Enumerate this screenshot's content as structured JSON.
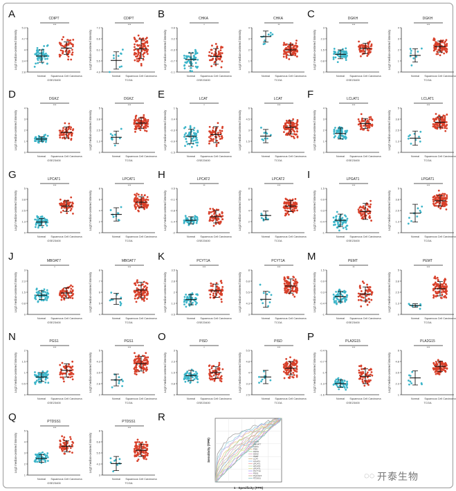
{
  "colors": {
    "normal": "#3cb5c9",
    "tumor": "#d8402a",
    "axis": "#333333"
  },
  "ylabel": "Log2 median-centered intensity",
  "categories": [
    "Normal",
    "Squamous Cell Carcinoma"
  ],
  "watermark": "开泰生物",
  "chart_data": [
    {
      "label": "A",
      "type": "scatter",
      "gene": "CDIPT",
      "plots": [
        {
          "dataset": "GSE23400",
          "sig": "***",
          "ylim": [
            2.8,
            5.3
          ],
          "groups": [
            {
              "mean": 3.7,
              "sd": 0.35,
              "n": 55
            },
            {
              "mean": 4.15,
              "sd": 0.35,
              "n": 55
            }
          ]
        },
        {
          "dataset": "TCGA",
          "sig": "***",
          "ylim": [
            4.9,
            7.2
          ],
          "groups": [
            {
              "mean": 5.5,
              "sd": 0.45,
              "n": 9
            },
            {
              "mean": 6.1,
              "sd": 0.5,
              "n": 90
            }
          ]
        }
      ]
    },
    {
      "label": "B",
      "type": "scatter",
      "gene": "CHKA",
      "plots": [
        {
          "dataset": "GSE23400",
          "sig": "*",
          "ylim": [
            -1.1,
            0.6
          ],
          "groups": [
            {
              "mean": -0.62,
              "sd": 0.25,
              "n": 55
            },
            {
              "mean": -0.5,
              "sd": 0.3,
              "n": 55
            }
          ]
        },
        {
          "dataset": "TCGA",
          "sig": "**",
          "ylim": [
            0,
            4
          ],
          "groups": [
            {
              "mean": 3.2,
              "sd": 0.5,
              "n": 9
            },
            {
              "mean": 2.0,
              "sd": 0.5,
              "n": 90
            }
          ]
        }
      ]
    },
    {
      "label": "C",
      "type": "scatter",
      "gene": "DGKH",
      "plots": [
        {
          "dataset": "GSE23400",
          "sig": "***",
          "ylim": [
            0,
            3
          ],
          "groups": [
            {
              "mean": 1.2,
              "sd": 0.3,
              "n": 55
            },
            {
              "mean": 1.6,
              "sd": 0.35,
              "n": 55
            }
          ]
        },
        {
          "dataset": "TCGA",
          "sig": "***",
          "ylim": [
            0,
            4
          ],
          "groups": [
            {
              "mean": 1.5,
              "sd": 0.6,
              "n": 9
            },
            {
              "mean": 2.3,
              "sd": 0.5,
              "n": 90
            }
          ]
        }
      ]
    },
    {
      "label": "D",
      "type": "scatter",
      "gene": "DGKZ",
      "plots": [
        {
          "dataset": "GSE23400",
          "sig": "***",
          "ylim": [
            0,
            4
          ],
          "groups": [
            {
              "mean": 1.2,
              "sd": 0.2,
              "n": 55
            },
            {
              "mean": 1.8,
              "sd": 0.5,
              "n": 55
            }
          ]
        },
        {
          "dataset": "TCGA",
          "sig": "***",
          "ylim": [
            0,
            5
          ],
          "groups": [
            {
              "mean": 1.7,
              "sd": 0.7,
              "n": 9
            },
            {
              "mean": 3.3,
              "sd": 0.6,
              "n": 90
            }
          ]
        }
      ]
    },
    {
      "label": "E",
      "type": "scatter",
      "gene": "LCAT",
      "plots": [
        {
          "dataset": "GSE23400",
          "sig": "*",
          "ylim": [
            -1.5,
            1
          ],
          "groups": [
            {
              "mean": -0.6,
              "sd": 0.4,
              "n": 55
            },
            {
              "mean": -0.5,
              "sd": 0.45,
              "n": 55
            }
          ]
        },
        {
          "dataset": "TCGA",
          "sig": "***",
          "ylim": [
            0,
            6
          ],
          "groups": [
            {
              "mean": 2.2,
              "sd": 0.9,
              "n": 9
            },
            {
              "mean": 3.4,
              "sd": 0.9,
              "n": 90
            }
          ]
        }
      ]
    },
    {
      "label": "F",
      "type": "scatter",
      "gene": "LCLAT1",
      "plots": [
        {
          "dataset": "GSE23400",
          "sig": "***",
          "ylim": [
            0,
            4
          ],
          "groups": [
            {
              "mean": 1.7,
              "sd": 0.5,
              "n": 55
            },
            {
              "mean": 2.6,
              "sd": 0.45,
              "n": 55
            }
          ]
        },
        {
          "dataset": "TCGA",
          "sig": "***",
          "ylim": [
            0,
            5
          ],
          "groups": [
            {
              "mean": 1.6,
              "sd": 0.8,
              "n": 9
            },
            {
              "mean": 3.4,
              "sd": 0.6,
              "n": 90
            }
          ]
        }
      ]
    },
    {
      "label": "G",
      "type": "scatter",
      "gene": "LPCAT1",
      "plots": [
        {
          "dataset": "GSE23400",
          "sig": "***",
          "ylim": [
            0,
            5
          ],
          "groups": [
            {
              "mean": 1.2,
              "sd": 0.4,
              "n": 55
            },
            {
              "mean": 3.0,
              "sd": 0.6,
              "n": 55
            }
          ]
        },
        {
          "dataset": "TCGA",
          "sig": "***",
          "ylim": [
            0,
            8
          ],
          "groups": [
            {
              "mean": 3.3,
              "sd": 1.2,
              "n": 9
            },
            {
              "mean": 5.5,
              "sd": 1.0,
              "n": 90
            }
          ]
        }
      ]
    },
    {
      "label": "H",
      "type": "scatter",
      "gene": "LPCAT2",
      "plots": [
        {
          "dataset": "GSE23400",
          "sig": "**",
          "ylim": [
            -2,
            0.5
          ],
          "groups": [
            {
              "mean": -1.3,
              "sd": 0.2,
              "n": 55
            },
            {
              "mean": -1.1,
              "sd": 0.35,
              "n": 55
            }
          ]
        },
        {
          "dataset": "TCGA",
          "sig": "***",
          "ylim": [
            0,
            8
          ],
          "groups": [
            {
              "mean": 3.1,
              "sd": 0.8,
              "n": 9
            },
            {
              "mean": 4.8,
              "sd": 1.0,
              "n": 90
            }
          ]
        }
      ]
    },
    {
      "label": "I",
      "type": "scatter",
      "gene": "LPGAT1",
      "plots": [
        {
          "dataset": "GSE23400",
          "sig": "***",
          "ylim": [
            -1,
            1.5
          ],
          "groups": [
            {
              "mean": -0.3,
              "sd": 0.35,
              "n": 55
            },
            {
              "mean": 0.2,
              "sd": 0.45,
              "n": 55
            }
          ]
        },
        {
          "dataset": "TCGA",
          "sig": "***",
          "ylim": [
            0,
            5
          ],
          "groups": [
            {
              "mean": 2.2,
              "sd": 1.0,
              "n": 9
            },
            {
              "mean": 3.6,
              "sd": 0.6,
              "n": 90
            }
          ]
        }
      ]
    },
    {
      "label": "J",
      "type": "scatter",
      "gene": "MBOAT7",
      "plots": [
        {
          "dataset": "GSE23400",
          "sig": "*",
          "ylim": [
            0,
            3
          ],
          "groups": [
            {
              "mean": 1.3,
              "sd": 0.3,
              "n": 55
            },
            {
              "mean": 1.45,
              "sd": 0.35,
              "n": 55
            }
          ]
        },
        {
          "dataset": "TCGA",
          "sig": "***",
          "ylim": [
            4,
            8
          ],
          "groups": [
            {
              "mean": 5.4,
              "sd": 0.5,
              "n": 9
            },
            {
              "mean": 6.2,
              "sd": 0.7,
              "n": 90
            }
          ]
        }
      ]
    },
    {
      "label": "K",
      "type": "scatter",
      "gene": "PCYT1A",
      "plots": [
        {
          "dataset": "GSE23400",
          "sig": "***",
          "ylim": [
            0.5,
            3.5
          ],
          "groups": [
            {
              "mean": 1.5,
              "sd": 0.35,
              "n": 55
            },
            {
              "mean": 2.1,
              "sd": 0.45,
              "n": 55
            }
          ]
        },
        {
          "dataset": "TCGA",
          "sig": "***",
          "ylim": [
            3,
            8
          ],
          "groups": [
            {
              "mean": 4.7,
              "sd": 0.9,
              "n": 9
            },
            {
              "mean": 6.2,
              "sd": 0.8,
              "n": 90
            }
          ]
        }
      ]
    },
    {
      "label": "M",
      "type": "scatter",
      "gene": "PEMT",
      "plots": [
        {
          "dataset": "GSE23400",
          "sig": "**",
          "ylim": [
            -1,
            1.5
          ],
          "groups": [
            {
              "mean": 0.0,
              "sd": 0.3,
              "n": 55
            },
            {
              "mean": 0.15,
              "sd": 0.4,
              "n": 55
            }
          ]
        },
        {
          "dataset": "TCGA",
          "sig": "***",
          "ylim": [
            0,
            5
          ],
          "groups": [
            {
              "mean": 1.0,
              "sd": 0.2,
              "n": 9
            },
            {
              "mean": 2.9,
              "sd": 0.8,
              "n": 90
            }
          ]
        }
      ]
    },
    {
      "label": "N",
      "type": "scatter",
      "gene": "PGS1",
      "plots": [
        {
          "dataset": "GSE23400",
          "sig": "***",
          "ylim": [
            0,
            2
          ],
          "groups": [
            {
              "mean": 0.8,
              "sd": 0.2,
              "n": 55
            },
            {
              "mean": 1.1,
              "sd": 0.3,
              "n": 55
            }
          ]
        },
        {
          "dataset": "TCGA",
          "sig": "***",
          "ylim": [
            2,
            5
          ],
          "groups": [
            {
              "mean": 3.0,
              "sd": 0.4,
              "n": 9
            },
            {
              "mean": 4.1,
              "sd": 0.5,
              "n": 90
            }
          ]
        }
      ]
    },
    {
      "label": "O",
      "type": "scatter",
      "gene": "PISD",
      "plots": [
        {
          "dataset": "GSE23400",
          "sig": "*",
          "ylim": [
            0,
            3
          ],
          "groups": [
            {
              "mean": 1.3,
              "sd": 0.35,
              "n": 55
            },
            {
              "mean": 1.5,
              "sd": 0.4,
              "n": 55
            }
          ]
        },
        {
          "dataset": "TCGA",
          "sig": "***",
          "ylim": [
            2.5,
            5.5
          ],
          "groups": [
            {
              "mean": 3.7,
              "sd": 0.45,
              "n": 9
            },
            {
              "mean": 4.3,
              "sd": 0.45,
              "n": 90
            }
          ]
        }
      ]
    },
    {
      "label": "P",
      "type": "scatter",
      "gene": "PLA2G15",
      "plots": [
        {
          "dataset": "GSE23400",
          "sig": "***",
          "ylim": [
            -1.6,
            -0.4
          ],
          "groups": [
            {
              "mean": -1.3,
              "sd": 0.1,
              "n": 55
            },
            {
              "mean": -1.1,
              "sd": 0.2,
              "n": 55
            }
          ]
        },
        {
          "dataset": "TCGA",
          "sig": "***",
          "ylim": [
            1,
            6
          ],
          "groups": [
            {
              "mean": 2.9,
              "sd": 0.8,
              "n": 9
            },
            {
              "mean": 4.2,
              "sd": 0.6,
              "n": 90
            }
          ]
        }
      ]
    },
    {
      "label": "Q",
      "type": "scatter",
      "gene": "PTDSS1",
      "plots": [
        {
          "dataset": "GSE23400",
          "sig": "***",
          "ylim": [
            1,
            5
          ],
          "groups": [
            {
              "mean": 2.5,
              "sd": 0.35,
              "n": 55
            },
            {
              "mean": 3.6,
              "sd": 0.5,
              "n": 55
            }
          ]
        },
        {
          "dataset": "TCGA",
          "sig": "***",
          "ylim": [
            3,
            8
          ],
          "groups": [
            {
              "mean": 4.3,
              "sd": 0.8,
              "n": 9
            },
            {
              "mean": 5.8,
              "sd": 0.7,
              "n": 90
            }
          ]
        }
      ]
    },
    {
      "label": "R",
      "type": "line",
      "title": "",
      "xlabel": "1 - Specificity (FPR)",
      "ylabel": "Sensitivity (TPR)",
      "xlim": [
        0,
        1
      ],
      "ylim": [
        0,
        1
      ],
      "series": [
        "CDIPT",
        "MBOAT7",
        "CHKA",
        "PISD",
        "DGKH",
        "DGKZ",
        "PEMT",
        "LCAT",
        "LCLAT1",
        "LPCAT1",
        "LPCAT2",
        "LPGAT1",
        "PCYT1A",
        "PGS1",
        "PLA2G15",
        "PTDSS1"
      ],
      "series_colors": [
        "#999999",
        "#8fd0e0",
        "#b8a0e0",
        "#f0c080",
        "#a0d090",
        "#e0a0c0",
        "#c0c0c0",
        "#d0b080",
        "#90c0f0",
        "#f0a0a0",
        "#b0e0b0",
        "#e0e090",
        "#a0a0f0",
        "#f0b0f0",
        "#c0a080",
        "#80c0c0"
      ]
    }
  ]
}
